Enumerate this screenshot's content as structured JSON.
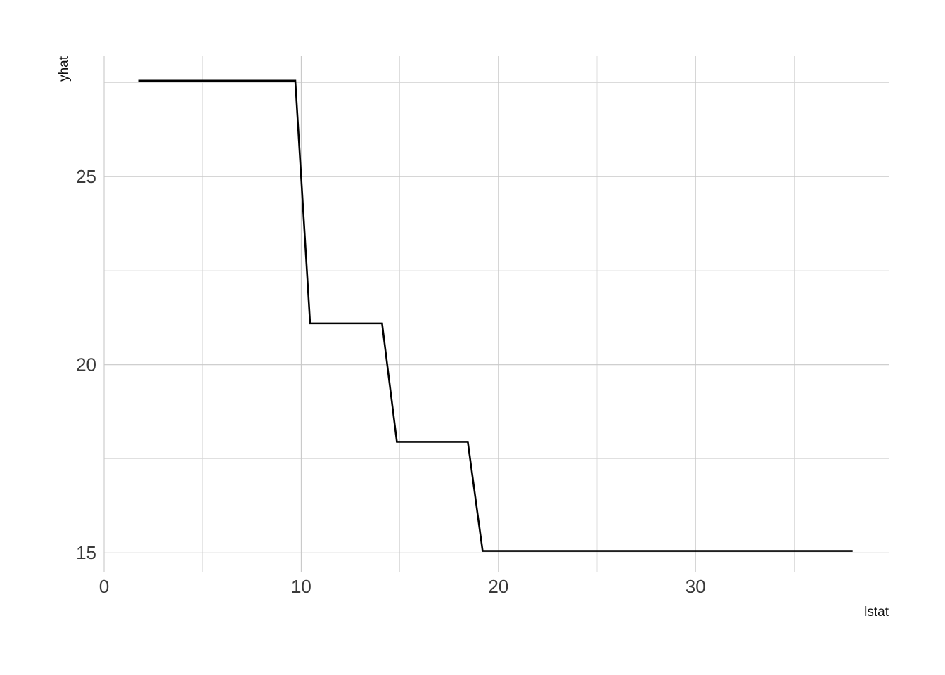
{
  "chart_data": {
    "type": "line",
    "title": "",
    "xlabel": "lstat",
    "ylabel": "yhat",
    "xlim": [
      0,
      39.8
    ],
    "ylim": [
      14.5,
      28.2
    ],
    "x_ticks": [
      0,
      10,
      20,
      30
    ],
    "y_ticks": [
      15,
      20,
      25
    ],
    "x_minor_ticks": [
      5,
      15,
      25,
      35
    ],
    "y_minor_ticks": [
      17.5,
      22.5,
      27.5
    ],
    "grid": true,
    "legend": "none",
    "line_color": "#000000",
    "series": [
      {
        "x": [
          1.73,
          9.7,
          10.45,
          14.1,
          14.85,
          18.45,
          19.2,
          37.97
        ],
        "values": [
          27.55,
          27.55,
          21.1,
          21.1,
          17.95,
          17.95,
          15.05,
          15.05
        ]
      }
    ]
  }
}
